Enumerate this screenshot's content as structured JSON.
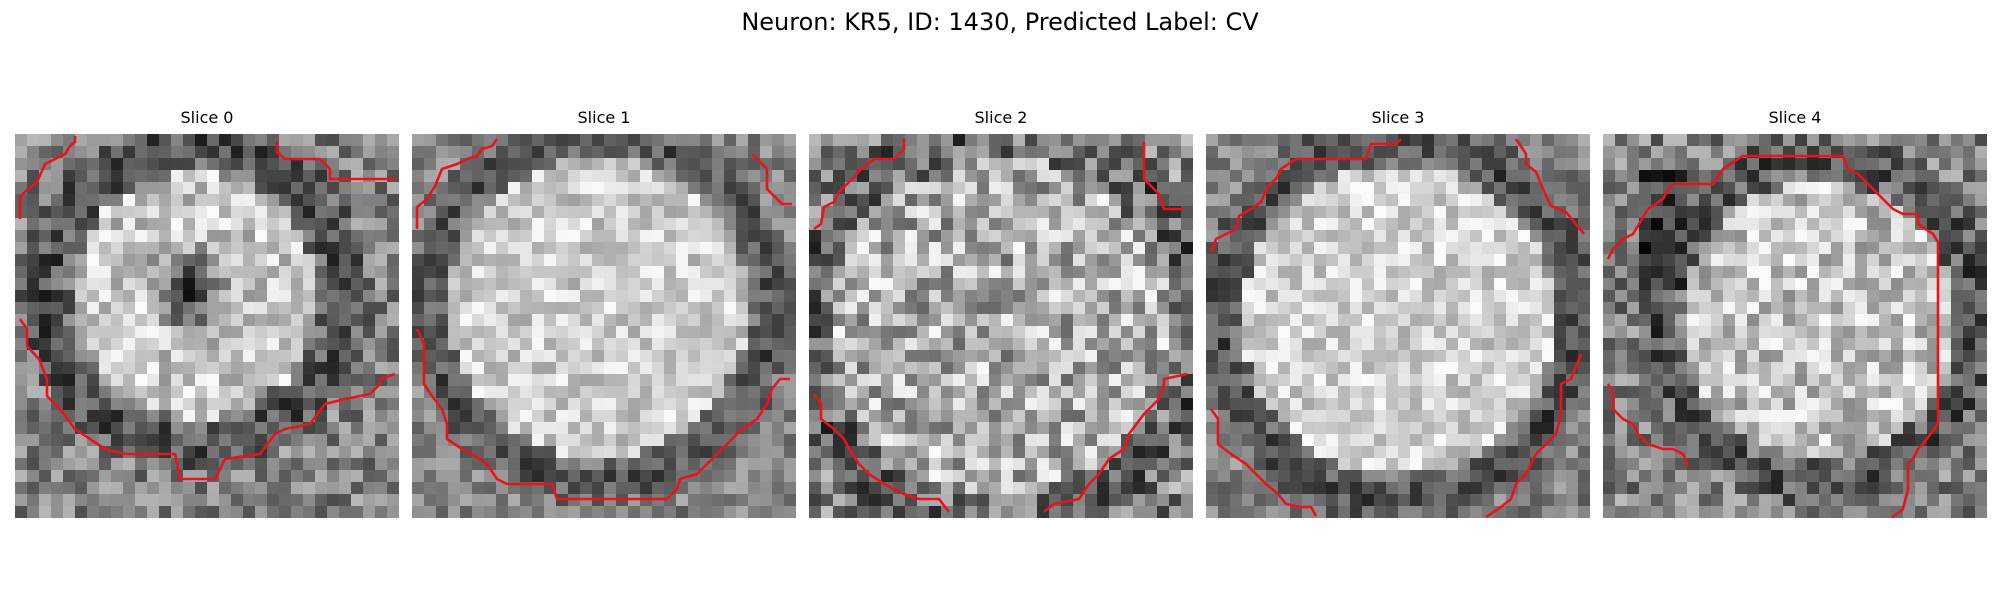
{
  "figure": {
    "title": "Neuron: KR5, ID: 1430, Predicted Label: CV"
  },
  "panels": [
    {
      "title": "Slice 0"
    },
    {
      "title": "Slice 1"
    },
    {
      "title": "Slice 2"
    },
    {
      "title": "Slice 3"
    },
    {
      "title": "Slice 4"
    }
  ],
  "colors": {
    "contour": "#e8141c",
    "background": "#ffffff",
    "colormap": "grayscale"
  }
}
